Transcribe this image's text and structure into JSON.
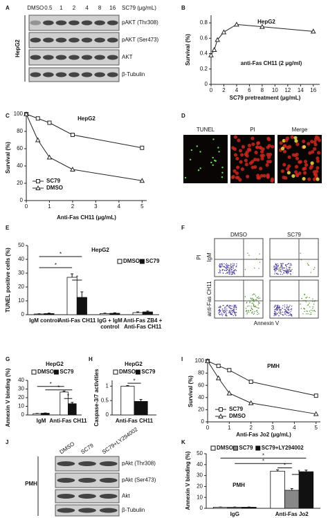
{
  "panel_labels": [
    "A",
    "B",
    "C",
    "D",
    "E",
    "F",
    "G",
    "H",
    "I",
    "J",
    "K"
  ],
  "blots": [
    {
      "lanes": [
        "DMSO",
        "0.5",
        "1",
        "2",
        "4",
        "8",
        "16"
      ],
      "lane_title": "SC79 (μg/mL)",
      "rows": [
        "pAKT (Thr308)",
        "pAKT (Ser473)",
        "AKT",
        "β-Tubulin"
      ],
      "cell": "HepG2"
    },
    {
      "lanes": [
        "DMSO",
        "SC79",
        "SC79+LY294002"
      ],
      "rows": [
        "pAkt (Thr308)",
        "pAkt (Ser473)",
        "Akt",
        "β-Tubulin"
      ],
      "cell": "PMH"
    }
  ],
  "microscopy": {
    "labels": [
      "TUNEL",
      "PI",
      "Merge"
    ]
  },
  "flow": {
    "columns": [
      "DMSO",
      "SC79"
    ],
    "rows": [
      "IgM",
      "anti-Fas CH11"
    ],
    "y_label": "PI",
    "x_label": "Annexin V"
  },
  "chart_data": [
    {
      "type": "line",
      "title": "HepG2",
      "annotation": "anti-Fas CH11 (2 μg/ml)",
      "x_label": "SC79 pretreatment (μg/mL)",
      "y_label": "Survival (%)",
      "x": [
        0,
        0.5,
        1,
        2,
        4,
        8,
        16
      ],
      "values": [
        0.38,
        0.45,
        0.58,
        0.68,
        0.78,
        0.75,
        0.69
      ],
      "color": "#222222",
      "marker": "triangle",
      "xlim": [
        0,
        17
      ],
      "xticks": [
        0,
        2,
        4,
        6,
        8,
        10,
        12,
        14,
        16
      ],
      "ylim": [
        0,
        0.9
      ],
      "yticks": [
        0,
        0.2,
        0.4,
        0.6,
        0.8
      ]
    },
    {
      "type": "line",
      "title": "HepG2",
      "x_label": "Anti-Fas CH11 (μg/mL)",
      "y_label": "Survival (%)",
      "x": [
        0,
        0.5,
        1,
        2,
        5
      ],
      "series": [
        {
          "name": "SC79",
          "color": "#222222",
          "marker": "square",
          "values": [
            100,
            95,
            90,
            76,
            61
          ]
        },
        {
          "name": "DMSO",
          "color": "#222222",
          "marker": "triangle",
          "values": [
            100,
            70,
            50,
            36,
            23
          ]
        }
      ],
      "xlim": [
        0,
        5.2
      ],
      "xticks": [
        0,
        1,
        2,
        3,
        4,
        5
      ],
      "ylim": [
        0,
        100
      ],
      "yticks": [
        0,
        20,
        40,
        60,
        80,
        100
      ],
      "legend": "bottom-left"
    },
    {
      "type": "bar",
      "title": "HepG2",
      "y_label": "TUNEL positive cells (%)",
      "categories": [
        "IgM control",
        "Anti-Fas CH11",
        "IgG + IgM\ncontrol",
        "Anti-Fas ZB4 +\nAnti-Fas CH11"
      ],
      "series": [
        {
          "name": "DMSO",
          "color": "#ffffff",
          "values": [
            0.5,
            27,
            0.8,
            1.5
          ],
          "errors": [
            0.2,
            2.5,
            0.3,
            0.5
          ]
        },
        {
          "name": "SC79",
          "color": "#111111",
          "values": [
            0.8,
            12.5,
            1.0,
            2.0
          ],
          "errors": [
            0.3,
            4,
            0.4,
            0.6
          ]
        }
      ],
      "ylim": [
        0,
        50
      ],
      "yticks": [
        0,
        10,
        20,
        30,
        40,
        50
      ],
      "annotations": [
        "*",
        "*",
        "*"
      ],
      "legend": "top-right"
    },
    {
      "type": "bar",
      "title": "HepG2",
      "y_label": "Annexin V binding (%)",
      "categories": [
        "IgM",
        "Anti-Fas CH11"
      ],
      "series": [
        {
          "name": "DMSO",
          "color": "#ffffff",
          "values": [
            1.5,
            26.5
          ],
          "errors": [
            0.3,
            1.2
          ]
        },
        {
          "name": "SC79",
          "color": "#111111",
          "values": [
            2,
            13
          ],
          "errors": [
            0.3,
            1.5
          ]
        }
      ],
      "ylim": [
        0,
        40
      ],
      "yticks": [
        0,
        10,
        20,
        30,
        40
      ],
      "annotations": [
        "*",
        "*",
        "*"
      ],
      "legend": "top"
    },
    {
      "type": "bar",
      "title": "HepG2",
      "y_label": "Caspase-3/7 activities",
      "categories": [
        "Anti-Fas CH11"
      ],
      "series": [
        {
          "name": "DMSO",
          "color": "#ffffff",
          "values": [
            1.0
          ],
          "errors": [
            0.02
          ]
        },
        {
          "name": "SC79",
          "color": "#111111",
          "values": [
            0.47
          ],
          "errors": [
            0.07
          ]
        }
      ],
      "ylim": [
        0,
        1.2
      ],
      "yticks": [
        0,
        0.5,
        1
      ],
      "annotations": [
        "*"
      ],
      "legend": "top"
    },
    {
      "type": "line",
      "title": "PMH",
      "x_label": "Anti-Fas Jo2 (μg/mL)",
      "y_label": "Survival (%)",
      "x": [
        0,
        0.5,
        1,
        2,
        5
      ],
      "series": [
        {
          "name": "SC79",
          "color": "#222222",
          "marker": "square",
          "values": [
            100,
            92,
            85,
            66,
            43
          ]
        },
        {
          "name": "DMSO",
          "color": "#222222",
          "marker": "triangle",
          "values": [
            100,
            72,
            47,
            31,
            13
          ]
        }
      ],
      "xlim": [
        0,
        5.2
      ],
      "xticks": [
        0,
        1,
        2,
        3,
        4,
        5
      ],
      "ylim": [
        0,
        100
      ],
      "yticks": [
        0,
        20,
        40,
        60,
        80,
        100
      ],
      "legend": "bottom-left"
    },
    {
      "type": "bar",
      "annotation": "PMH",
      "y_label": "Annexin V binding (%)",
      "categories": [
        "IgG",
        "Anti-Fas Jo2"
      ],
      "series": [
        {
          "name": "DMSO",
          "color": "#ffffff",
          "values": [
            1,
            34
          ],
          "errors": [
            0.2,
            1.2
          ]
        },
        {
          "name": "SC79",
          "color": "#888888",
          "values": [
            1,
            16.5
          ],
          "errors": [
            0.2,
            1.5
          ]
        },
        {
          "name": "SC79+LY294002",
          "color": "#111111",
          "values": [
            1,
            33.5
          ],
          "errors": [
            0.2,
            1.5
          ]
        }
      ],
      "ylim": [
        0,
        50
      ],
      "yticks": [
        0,
        10,
        20,
        30,
        40,
        50
      ],
      "annotations": [
        "*",
        "*",
        "*",
        "*"
      ],
      "legend": "top"
    }
  ]
}
